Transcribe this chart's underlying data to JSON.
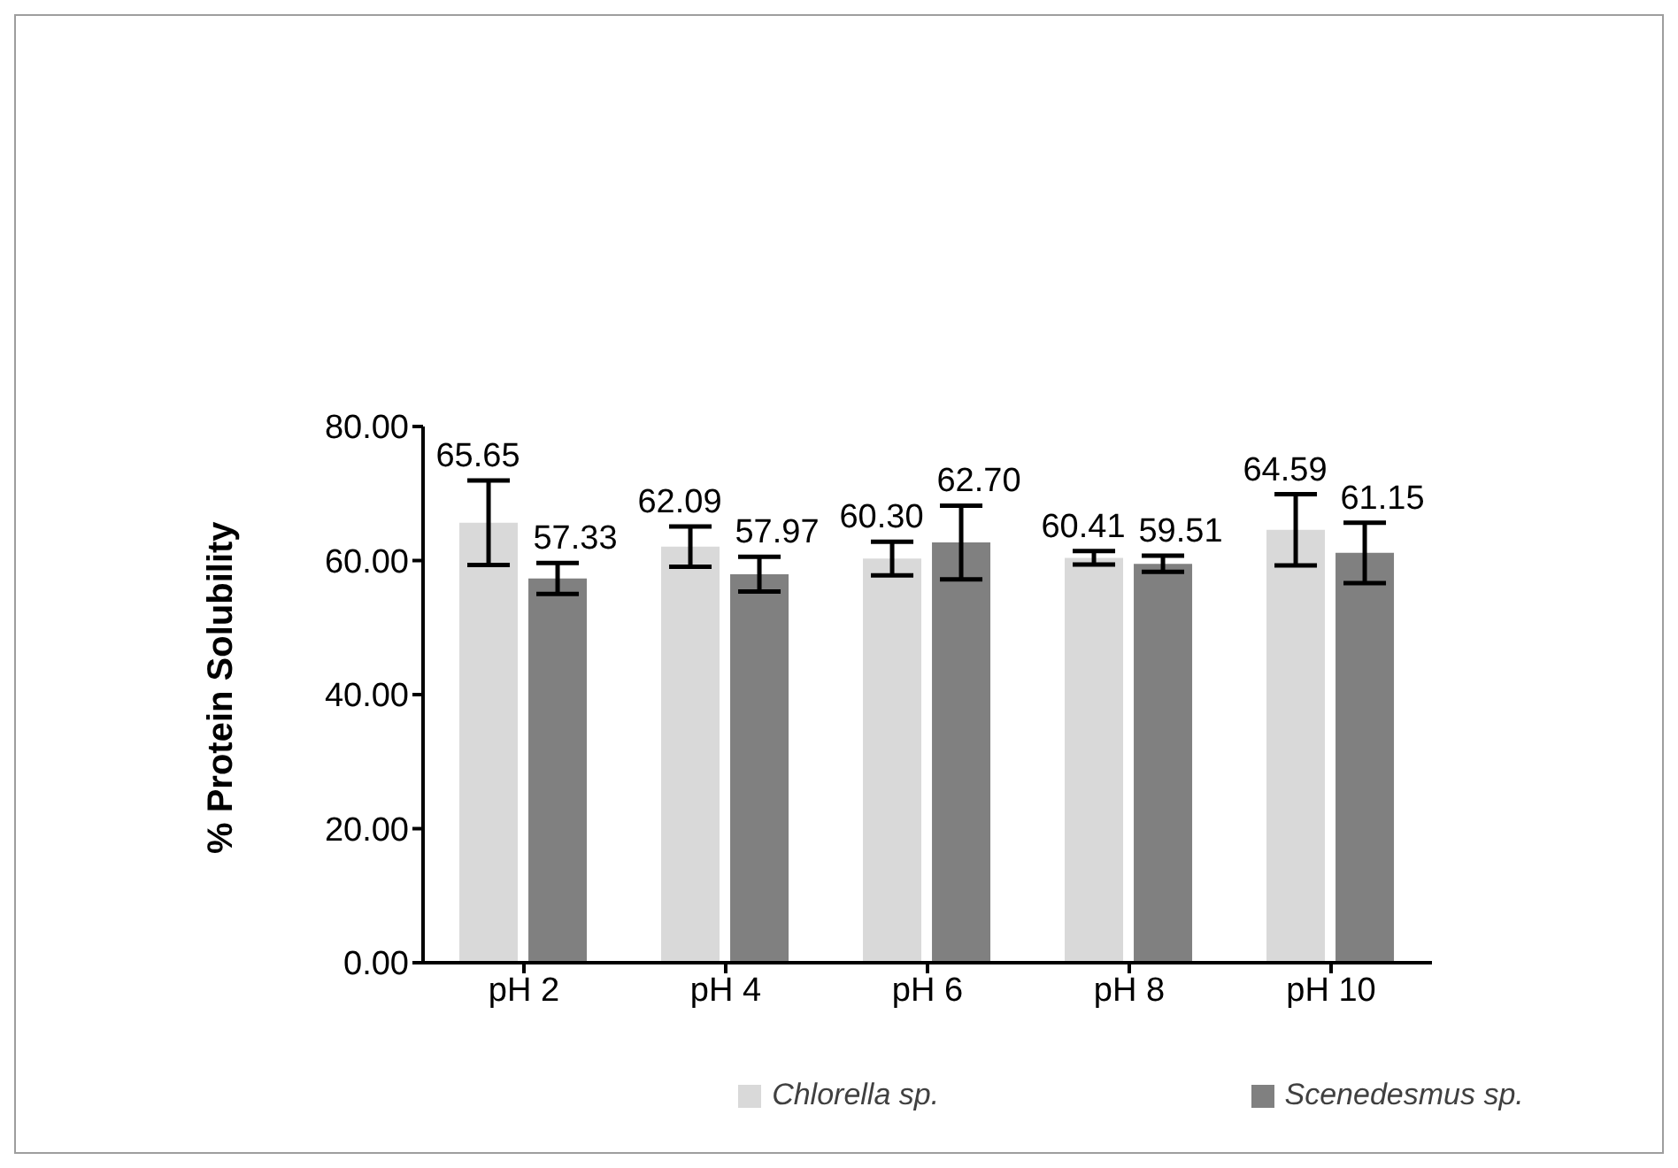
{
  "chart_data": {
    "type": "bar",
    "ylabel": "% Protein Solubility",
    "categories": [
      "pH 2",
      "pH 4",
      "pH 6",
      "pH 8",
      "pH 10"
    ],
    "series": [
      {
        "name": "Chlorella sp.",
        "color": "#d9d9d9",
        "values": [
          65.65,
          62.09,
          60.3,
          60.41,
          64.59
        ],
        "errors": [
          6.3,
          3,
          2.5,
          1,
          5.3
        ],
        "value_labels": [
          "65.65",
          "62.09",
          "60.30",
          "60.41",
          "64.59"
        ]
      },
      {
        "name": "Scenedesmus sp.",
        "color": "#808080",
        "values": [
          57.33,
          57.97,
          62.7,
          59.51,
          61.15
        ],
        "errors": [
          2.3,
          2.6,
          5.5,
          1.2,
          4.5
        ],
        "value_labels": [
          "57.33",
          "57.97",
          "62.70",
          "59.51",
          "61.15"
        ]
      }
    ],
    "ylim": [
      0,
      80
    ],
    "yticks": [
      {
        "value": 0,
        "label": "0.00"
      },
      {
        "value": 20,
        "label": "20.00"
      },
      {
        "value": 40,
        "label": "40.00"
      },
      {
        "value": 60,
        "label": "60.00"
      },
      {
        "value": 80,
        "label": "80.00"
      }
    ],
    "legend": "bottom"
  }
}
